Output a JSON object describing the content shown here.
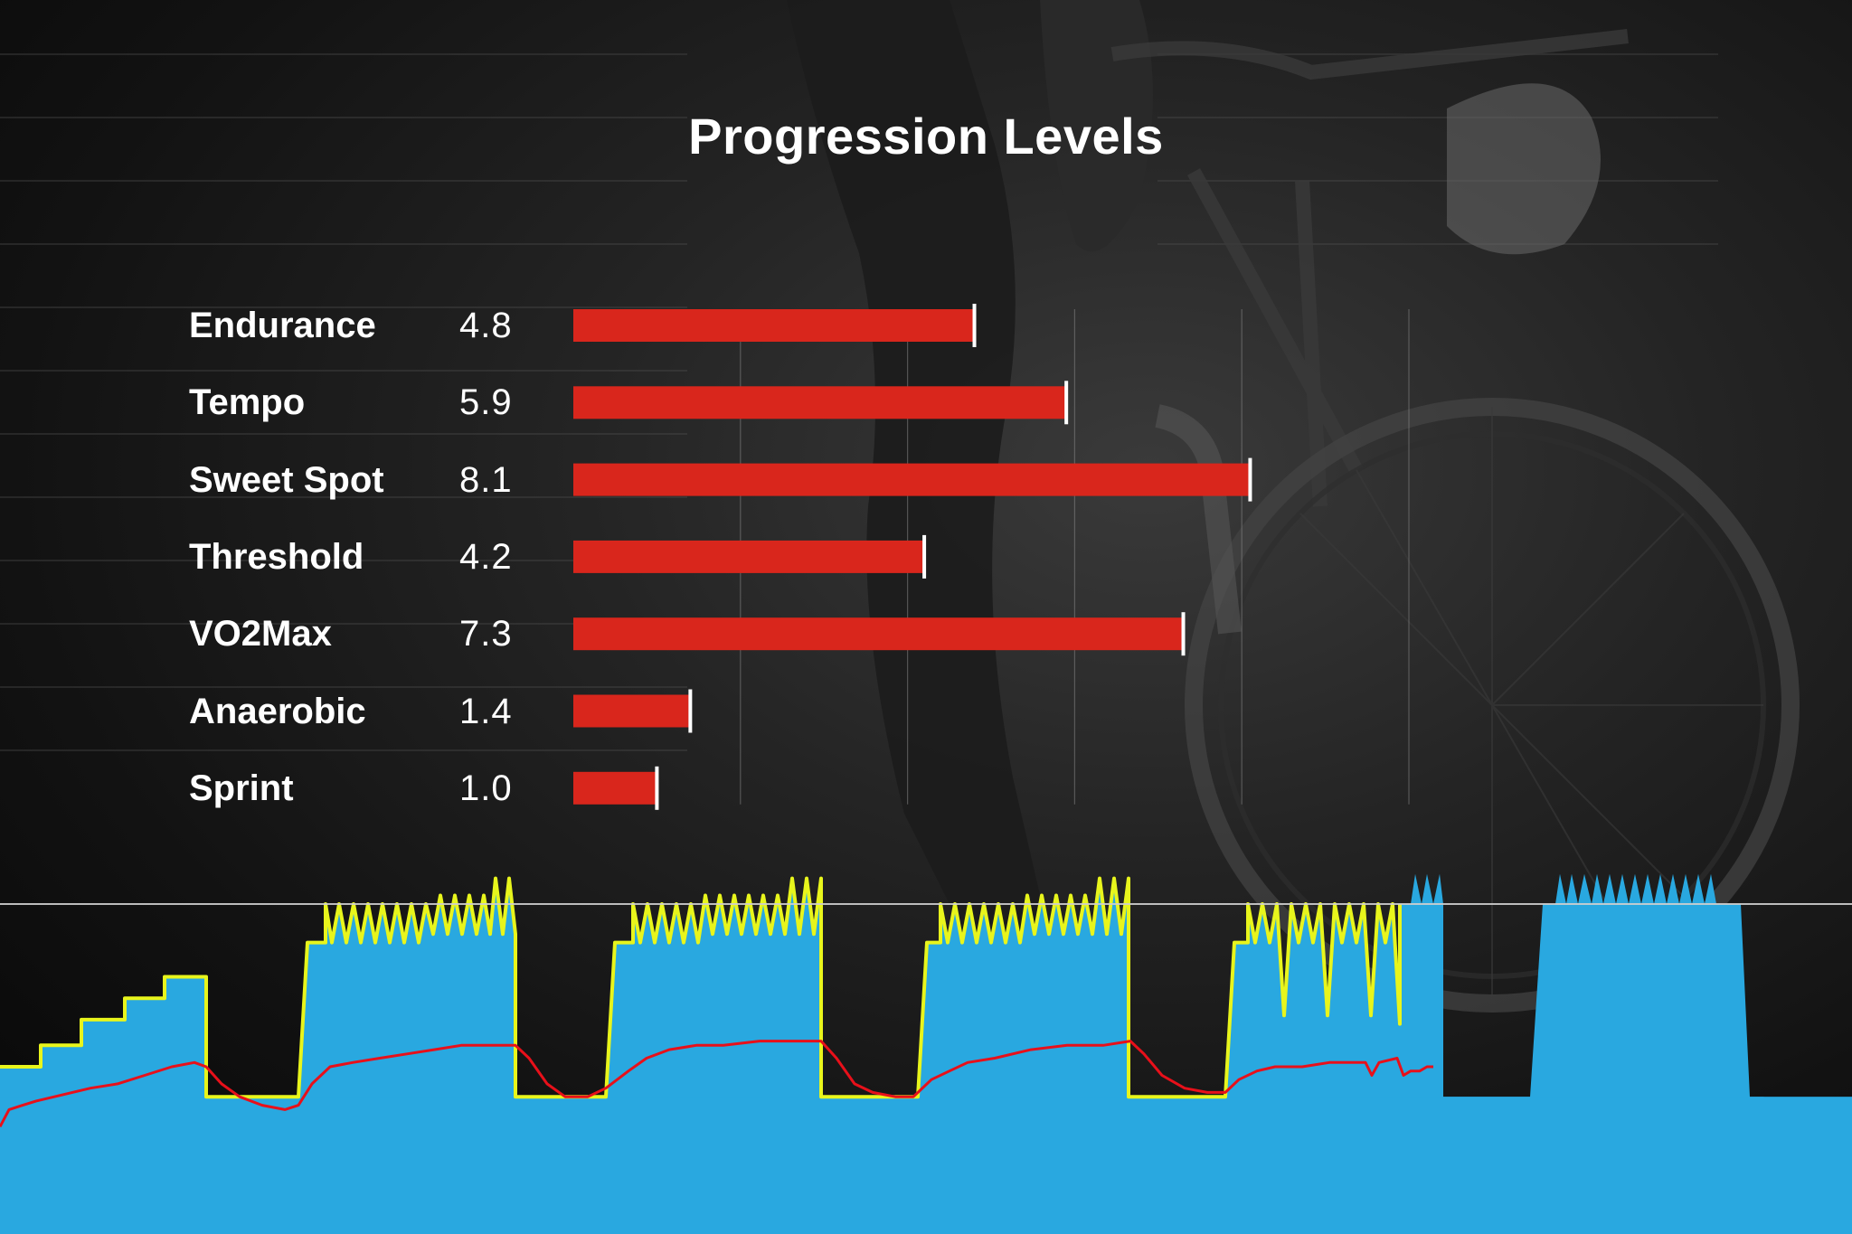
{
  "chart_data": [
    {
      "type": "bar",
      "orientation": "horizontal",
      "title": "Progression Levels",
      "categories": [
        "Endurance",
        "Tempo",
        "Sweet Spot",
        "Threshold",
        "VO2Max",
        "Anaerobic",
        "Sprint"
      ],
      "values": [
        4.8,
        5.9,
        8.1,
        4.2,
        7.3,
        1.4,
        1.0
      ],
      "value_labels": [
        "4.8",
        "5.9",
        "8.1",
        "4.2",
        "7.3",
        "1.4",
        "1.0"
      ],
      "xlim": [
        0,
        10
      ],
      "grid": true,
      "bar_color": "#d9261c",
      "marker_color": "#ffffff"
    },
    {
      "type": "area",
      "description_free": true,
      "series": [
        {
          "values": [
            [
              0,
              0.0
            ],
            [
              45,
              0.0
            ],
            [
              45,
              0.05
            ],
            [
              90,
              0.05
            ],
            [
              90,
              0.11
            ],
            [
              138,
              0.11
            ],
            [
              138,
              0.16
            ],
            [
              182,
              0.16
            ],
            [
              182,
              0.21
            ],
            [
              228,
              0.21
            ],
            [
              228,
              -0.07
            ],
            [
              330,
              -0.07
            ],
            [
              340,
              0.29
            ],
            [
              360,
              0.29
            ],
            [
              360,
              0.38
            ],
            [
              367,
              0.29
            ],
            [
              375,
              0.38
            ],
            [
              383,
              0.29
            ],
            [
              391,
              0.38
            ],
            [
              399,
              0.29
            ],
            [
              407,
              0.38
            ],
            [
              415,
              0.29
            ],
            [
              423,
              0.38
            ],
            [
              431,
              0.29
            ],
            [
              439,
              0.38
            ],
            [
              447,
              0.29
            ],
            [
              455,
              0.38
            ],
            [
              463,
              0.29
            ],
            [
              471,
              0.38
            ],
            [
              479,
              0.31
            ],
            [
              487,
              0.4
            ],
            [
              495,
              0.31
            ],
            [
              503,
              0.4
            ],
            [
              511,
              0.31
            ],
            [
              519,
              0.4
            ],
            [
              527,
              0.31
            ],
            [
              535,
              0.4
            ],
            [
              542,
              0.31
            ],
            [
              548,
              0.44
            ],
            [
              556,
              0.31
            ],
            [
              563,
              0.44
            ],
            [
              570,
              0.31
            ],
            [
              570,
              -0.07
            ],
            [
              670,
              -0.07
            ],
            [
              680,
              0.29
            ],
            [
              700,
              0.29
            ],
            [
              700,
              0.38
            ],
            [
              708,
              0.29
            ],
            [
              716,
              0.38
            ],
            [
              724,
              0.29
            ],
            [
              732,
              0.38
            ],
            [
              740,
              0.29
            ],
            [
              748,
              0.38
            ],
            [
              756,
              0.29
            ],
            [
              764,
              0.38
            ],
            [
              772,
              0.29
            ],
            [
              780,
              0.4
            ],
            [
              788,
              0.31
            ],
            [
              796,
              0.4
            ],
            [
              804,
              0.31
            ],
            [
              812,
              0.4
            ],
            [
              820,
              0.31
            ],
            [
              828,
              0.4
            ],
            [
              836,
              0.31
            ],
            [
              844,
              0.4
            ],
            [
              852,
              0.31
            ],
            [
              860,
              0.4
            ],
            [
              868,
              0.31
            ],
            [
              876,
              0.44
            ],
            [
              884,
              0.31
            ],
            [
              892,
              0.44
            ],
            [
              900,
              0.31
            ],
            [
              908,
              0.44
            ],
            [
              908,
              -0.07
            ],
            [
              1015,
              -0.07
            ],
            [
              1025,
              0.29
            ],
            [
              1040,
              0.29
            ],
            [
              1040,
              0.38
            ],
            [
              1048,
              0.29
            ],
            [
              1056,
              0.38
            ],
            [
              1064,
              0.29
            ],
            [
              1072,
              0.38
            ],
            [
              1080,
              0.29
            ],
            [
              1088,
              0.38
            ],
            [
              1096,
              0.29
            ],
            [
              1104,
              0.38
            ],
            [
              1112,
              0.29
            ],
            [
              1120,
              0.38
            ],
            [
              1128,
              0.29
            ],
            [
              1136,
              0.4
            ],
            [
              1144,
              0.31
            ],
            [
              1152,
              0.4
            ],
            [
              1160,
              0.31
            ],
            [
              1168,
              0.4
            ],
            [
              1176,
              0.31
            ],
            [
              1184,
              0.4
            ],
            [
              1192,
              0.31
            ],
            [
              1200,
              0.4
            ],
            [
              1208,
              0.31
            ],
            [
              1216,
              0.44
            ],
            [
              1224,
              0.31
            ],
            [
              1232,
              0.44
            ],
            [
              1240,
              0.31
            ],
            [
              1248,
              0.44
            ],
            [
              1248,
              -0.07
            ],
            [
              1355,
              -0.07
            ],
            [
              1365,
              0.29
            ],
            [
              1380,
              0.29
            ],
            [
              1380,
              0.38
            ],
            [
              1388,
              0.29
            ],
            [
              1396,
              0.38
            ],
            [
              1404,
              0.29
            ],
            [
              1412,
              0.38
            ],
            [
              1420,
              0.12
            ],
            [
              1428,
              0.38
            ],
            [
              1436,
              0.29
            ],
            [
              1444,
              0.38
            ],
            [
              1452,
              0.29
            ],
            [
              1460,
              0.38
            ],
            [
              1468,
              0.12
            ],
            [
              1476,
              0.38
            ],
            [
              1484,
              0.29
            ],
            [
              1492,
              0.38
            ],
            [
              1500,
              0.29
            ],
            [
              1508,
              0.38
            ],
            [
              1516,
              0.12
            ],
            [
              1524,
              0.38
            ],
            [
              1532,
              0.29
            ],
            [
              1540,
              0.38
            ],
            [
              1548,
              0.1
            ],
            [
              1548,
              0.38
            ],
            [
              1560,
              0.38
            ],
            [
              1565,
              0.45
            ],
            [
              1572,
              0.38
            ],
            [
              1578,
              0.45
            ],
            [
              1585,
              0.38
            ],
            [
              1592,
              0.45
            ],
            [
              1596,
              0.38
            ],
            [
              1596,
              -0.07
            ],
            [
              1692,
              -0.07
            ],
            [
              1706,
              0.38
            ],
            [
              1720,
              0.38
            ],
            [
              1725,
              0.45
            ],
            [
              1732,
              0.38
            ],
            [
              1738,
              0.45
            ],
            [
              1745,
              0.38
            ],
            [
              1752,
              0.45
            ],
            [
              1760,
              0.38
            ],
            [
              1766,
              0.45
            ],
            [
              1773,
              0.38
            ],
            [
              1780,
              0.45
            ],
            [
              1787,
              0.38
            ],
            [
              1794,
              0.45
            ],
            [
              1801,
              0.38
            ],
            [
              1808,
              0.45
            ],
            [
              1815,
              0.38
            ],
            [
              1822,
              0.45
            ],
            [
              1829,
              0.38
            ],
            [
              1836,
              0.45
            ],
            [
              1843,
              0.38
            ],
            [
              1850,
              0.45
            ],
            [
              1857,
              0.38
            ],
            [
              1864,
              0.45
            ],
            [
              1871,
              0.38
            ],
            [
              1878,
              0.45
            ],
            [
              1885,
              0.38
            ],
            [
              1892,
              0.45
            ],
            [
              1898,
              0.38
            ],
            [
              1925,
              0.38
            ],
            [
              1935,
              -0.07
            ],
            [
              1950,
              -0.07
            ],
            [
              2048,
              -0.12
            ]
          ],
          "color": "#29a8e0",
          "edge_color": "#e8f51c"
        },
        {
          "values": [
            [
              0,
              -0.14
            ],
            [
              10,
              -0.1
            ],
            [
              25,
              -0.09
            ],
            [
              40,
              -0.08
            ],
            [
              60,
              -0.07
            ],
            [
              80,
              -0.06
            ],
            [
              100,
              -0.05
            ],
            [
              130,
              -0.04
            ],
            [
              160,
              -0.02
            ],
            [
              190,
              0.0
            ],
            [
              215,
              0.01
            ],
            [
              228,
              0.0
            ],
            [
              245,
              -0.04
            ],
            [
              265,
              -0.07
            ],
            [
              290,
              -0.09
            ],
            [
              315,
              -0.1
            ],
            [
              330,
              -0.09
            ],
            [
              345,
              -0.04
            ],
            [
              365,
              0.0
            ],
            [
              390,
              0.01
            ],
            [
              420,
              0.02
            ],
            [
              450,
              0.03
            ],
            [
              480,
              0.04
            ],
            [
              510,
              0.05
            ],
            [
              545,
              0.05
            ],
            [
              570,
              0.05
            ],
            [
              585,
              0.02
            ],
            [
              605,
              -0.04
            ],
            [
              625,
              -0.07
            ],
            [
              650,
              -0.07
            ],
            [
              670,
              -0.05
            ],
            [
              695,
              -0.01
            ],
            [
              715,
              0.02
            ],
            [
              740,
              0.04
            ],
            [
              770,
              0.05
            ],
            [
              800,
              0.05
            ],
            [
              840,
              0.06
            ],
            [
              880,
              0.06
            ],
            [
              908,
              0.06
            ],
            [
              925,
              0.02
            ],
            [
              945,
              -0.04
            ],
            [
              965,
              -0.06
            ],
            [
              990,
              -0.07
            ],
            [
              1010,
              -0.07
            ],
            [
              1030,
              -0.03
            ],
            [
              1050,
              -0.01
            ],
            [
              1070,
              0.01
            ],
            [
              1100,
              0.02
            ],
            [
              1140,
              0.04
            ],
            [
              1180,
              0.05
            ],
            [
              1220,
              0.05
            ],
            [
              1250,
              0.06
            ],
            [
              1265,
              0.03
            ],
            [
              1285,
              -0.02
            ],
            [
              1310,
              -0.05
            ],
            [
              1335,
              -0.06
            ],
            [
              1355,
              -0.06
            ],
            [
              1370,
              -0.03
            ],
            [
              1390,
              -0.01
            ],
            [
              1410,
              0.0
            ],
            [
              1440,
              0.0
            ],
            [
              1470,
              0.01
            ],
            [
              1495,
              0.01
            ],
            [
              1500,
              0.01
            ],
            [
              1510,
              0.01
            ],
            [
              1517,
              -0.02
            ],
            [
              1525,
              0.01
            ],
            [
              1545,
              0.02
            ],
            [
              1552,
              -0.02
            ],
            [
              1560,
              -0.01
            ],
            [
              1570,
              -0.01
            ],
            [
              1578,
              0.0
            ],
            [
              1585,
              0.0
            ]
          ],
          "color": "#e8101a"
        }
      ],
      "reference_line": 0.38,
      "ylim": [
        -0.2,
        0.6
      ]
    }
  ]
}
